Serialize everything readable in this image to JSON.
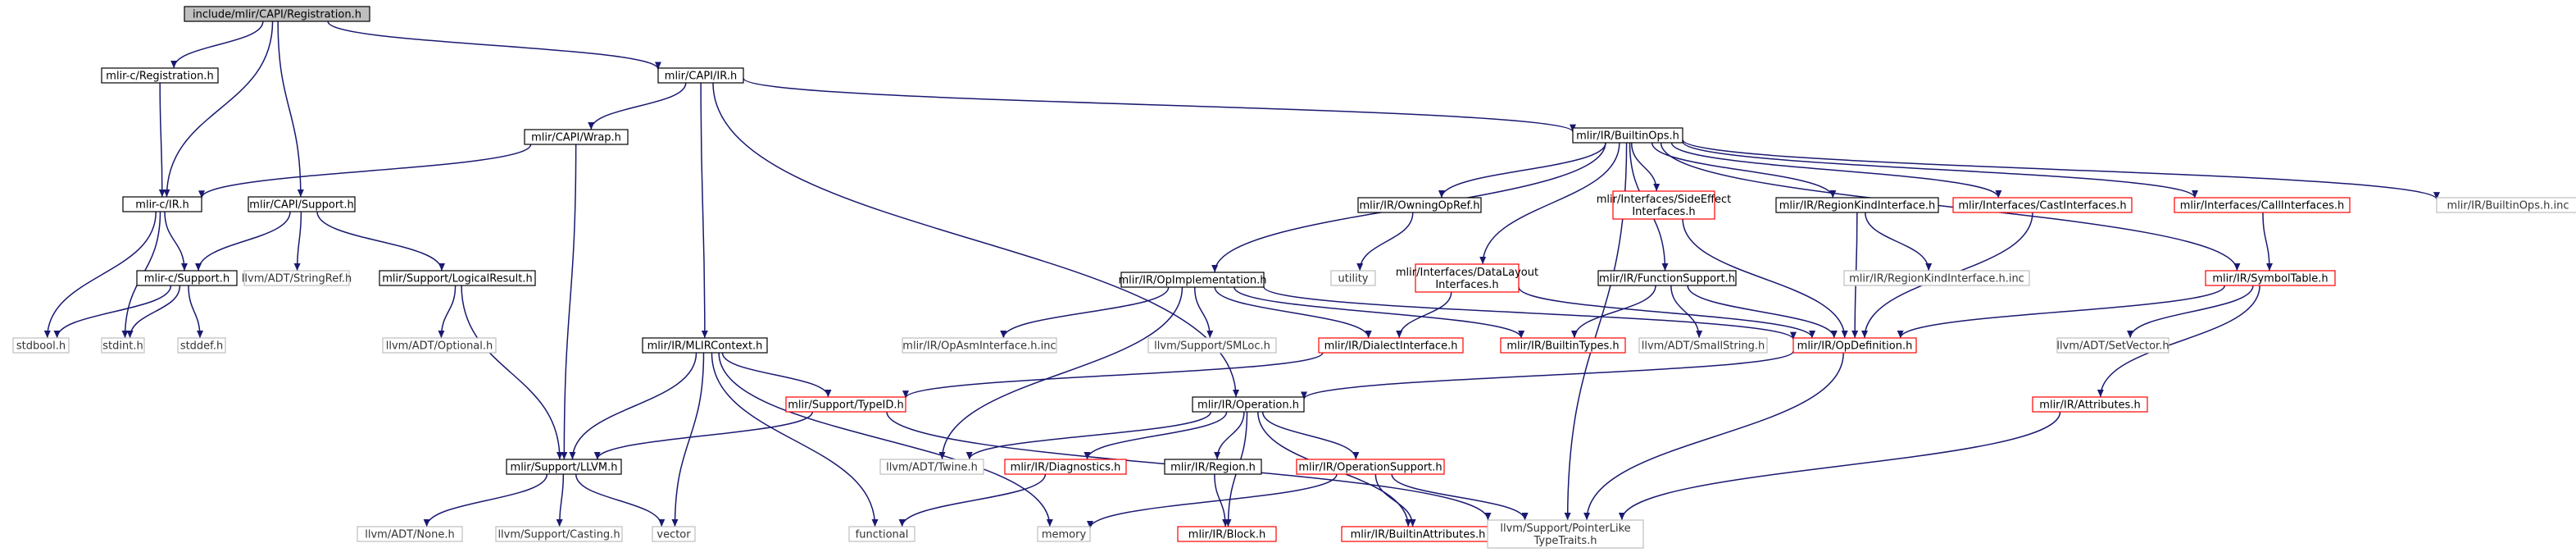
{
  "colors": {
    "edge": "#191970",
    "border_local": "#000000",
    "border_external": "#bfbfbf",
    "border_incomplete": "#ff0000",
    "fill_root": "#bfbfbf",
    "fill_default": "#ffffff"
  },
  "graph": {
    "nodes": [
      {
        "id": "root",
        "label": "include/mlir/CAPI/Registration.h",
        "kind": "root"
      },
      {
        "id": "mlircReg",
        "label": "mlir-c/Registration.h",
        "kind": "local"
      },
      {
        "id": "capiIR",
        "label": "mlir/CAPI/IR.h",
        "kind": "local"
      },
      {
        "id": "capiWrap",
        "label": "mlir/CAPI/Wrap.h",
        "kind": "local"
      },
      {
        "id": "mlircIR",
        "label": "mlir-c/IR.h",
        "kind": "local"
      },
      {
        "id": "capiSupport",
        "label": "mlir/CAPI/Support.h",
        "kind": "local"
      },
      {
        "id": "mlircSupport",
        "label": "mlir-c/Support.h",
        "kind": "local"
      },
      {
        "id": "stringref",
        "label": "llvm/ADT/StringRef.h",
        "kind": "external"
      },
      {
        "id": "logicalResult",
        "label": "mlir/Support/LogicalResult.h",
        "kind": "local"
      },
      {
        "id": "stdbool",
        "label": "stdbool.h",
        "kind": "external"
      },
      {
        "id": "stdint",
        "label": "stdint.h",
        "kind": "external"
      },
      {
        "id": "stddef",
        "label": "stddef.h",
        "kind": "external"
      },
      {
        "id": "optional",
        "label": "llvm/ADT/Optional.h",
        "kind": "external"
      },
      {
        "id": "mlirContext",
        "label": "mlir/IR/MLIRContext.h",
        "kind": "local"
      },
      {
        "id": "typeid",
        "label": "mlir/Support/TypeID.h",
        "kind": "incomplete"
      },
      {
        "id": "llvmh",
        "label": "mlir/Support/LLVM.h",
        "kind": "local"
      },
      {
        "id": "none",
        "label": "llvm/ADT/None.h",
        "kind": "external"
      },
      {
        "id": "casting",
        "label": "llvm/Support/Casting.h",
        "kind": "external"
      },
      {
        "id": "vector",
        "label": "vector",
        "kind": "external"
      },
      {
        "id": "functional",
        "label": "functional",
        "kind": "external"
      },
      {
        "id": "memory",
        "label": "memory",
        "kind": "external"
      },
      {
        "id": "builtinOps",
        "label": "mlir/IR/BuiltinOps.h",
        "kind": "local"
      },
      {
        "id": "owningOpRef",
        "label": "mlir/IR/OwningOpRef.h",
        "kind": "local"
      },
      {
        "id": "utility",
        "label": "utility",
        "kind": "external"
      },
      {
        "id": "sideEffect",
        "label": "mlir/Interfaces/SideEffect|Interfaces.h",
        "kind": "incomplete"
      },
      {
        "id": "regionKind",
        "label": "mlir/IR/RegionKindInterface.h",
        "kind": "local"
      },
      {
        "id": "castInterfaces",
        "label": "mlir/Interfaces/CastInterfaces.h",
        "kind": "incomplete"
      },
      {
        "id": "callInterfaces",
        "label": "mlir/Interfaces/CallInterfaces.h",
        "kind": "incomplete"
      },
      {
        "id": "builtinOpsInc",
        "label": "mlir/IR/BuiltinOps.h.inc",
        "kind": "external"
      },
      {
        "id": "opImpl",
        "label": "mlir/IR/OpImplementation.h",
        "kind": "local"
      },
      {
        "id": "dataLayout",
        "label": "mlir/Interfaces/DataLayout|Interfaces.h",
        "kind": "incomplete"
      },
      {
        "id": "functionSupport",
        "label": "mlir/IR/FunctionSupport.h",
        "kind": "local"
      },
      {
        "id": "regionKindInc",
        "label": "mlir/IR/RegionKindInterface.h.inc",
        "kind": "external"
      },
      {
        "id": "symbolTable",
        "label": "mlir/IR/SymbolTable.h",
        "kind": "incomplete"
      },
      {
        "id": "opAsmInc",
        "label": "mlir/IR/OpAsmInterface.h.inc",
        "kind": "external"
      },
      {
        "id": "smloc",
        "label": "llvm/Support/SMLoc.h",
        "kind": "external"
      },
      {
        "id": "dialectInterface",
        "label": "mlir/IR/DialectInterface.h",
        "kind": "incomplete"
      },
      {
        "id": "builtinTypes",
        "label": "mlir/IR/BuiltinTypes.h",
        "kind": "incomplete"
      },
      {
        "id": "smallString",
        "label": "llvm/ADT/SmallString.h",
        "kind": "external"
      },
      {
        "id": "opDefinition",
        "label": "mlir/IR/OpDefinition.h",
        "kind": "incomplete"
      },
      {
        "id": "setVector",
        "label": "llvm/ADT/SetVector.h",
        "kind": "external"
      },
      {
        "id": "operation",
        "label": "mlir/IR/Operation.h",
        "kind": "local"
      },
      {
        "id": "attributes",
        "label": "mlir/IR/Attributes.h",
        "kind": "incomplete"
      },
      {
        "id": "twine",
        "label": "llvm/ADT/Twine.h",
        "kind": "external"
      },
      {
        "id": "diagnostics",
        "label": "mlir/IR/Diagnostics.h",
        "kind": "incomplete"
      },
      {
        "id": "region",
        "label": "mlir/IR/Region.h",
        "kind": "local"
      },
      {
        "id": "operationSupport",
        "label": "mlir/IR/OperationSupport.h",
        "kind": "incomplete"
      },
      {
        "id": "block",
        "label": "mlir/IR/Block.h",
        "kind": "incomplete"
      },
      {
        "id": "builtinAttributes",
        "label": "mlir/IR/BuiltinAttributes.h",
        "kind": "incomplete"
      },
      {
        "id": "pointerLike",
        "label": "llvm/Support/PointerLike|TypeTraits.h",
        "kind": "external"
      }
    ],
    "edges": [
      [
        "root",
        "mlircReg"
      ],
      [
        "root",
        "mlircIR"
      ],
      [
        "root",
        "capiSupport"
      ],
      [
        "root",
        "capiIR"
      ],
      [
        "mlircReg",
        "mlircIR"
      ],
      [
        "capiIR",
        "capiWrap"
      ],
      [
        "capiIR",
        "mlirContext"
      ],
      [
        "capiIR",
        "operation"
      ],
      [
        "capiIR",
        "builtinOps"
      ],
      [
        "capiWrap",
        "mlircIR"
      ],
      [
        "capiWrap",
        "llvmh"
      ],
      [
        "mlircIR",
        "mlircSupport"
      ],
      [
        "mlircIR",
        "stdbool"
      ],
      [
        "mlircIR",
        "stdint"
      ],
      [
        "capiSupport",
        "mlircSupport"
      ],
      [
        "capiSupport",
        "stringref"
      ],
      [
        "capiSupport",
        "logicalResult"
      ],
      [
        "mlircSupport",
        "stdbool"
      ],
      [
        "mlircSupport",
        "stdint"
      ],
      [
        "mlircSupport",
        "stddef"
      ],
      [
        "logicalResult",
        "optional"
      ],
      [
        "logicalResult",
        "llvmh"
      ],
      [
        "mlirContext",
        "llvmh"
      ],
      [
        "mlirContext",
        "typeid"
      ],
      [
        "mlirContext",
        "vector"
      ],
      [
        "mlirContext",
        "functional"
      ],
      [
        "mlirContext",
        "memory"
      ],
      [
        "typeid",
        "llvmh"
      ],
      [
        "typeid",
        "pointerLike"
      ],
      [
        "llvmh",
        "none"
      ],
      [
        "llvmh",
        "casting"
      ],
      [
        "llvmh",
        "vector"
      ],
      [
        "builtinOps",
        "opImpl"
      ],
      [
        "builtinOps",
        "owningOpRef"
      ],
      [
        "builtinOps",
        "dataLayout"
      ],
      [
        "builtinOps",
        "sideEffect"
      ],
      [
        "builtinOps",
        "functionSupport"
      ],
      [
        "builtinOps",
        "regionKind"
      ],
      [
        "builtinOps",
        "castInterfaces"
      ],
      [
        "builtinOps",
        "callInterfaces"
      ],
      [
        "builtinOps",
        "symbolTable"
      ],
      [
        "builtinOps",
        "builtinOpsInc"
      ],
      [
        "builtinOps",
        "pointerLike"
      ],
      [
        "owningOpRef",
        "utility"
      ],
      [
        "sideEffect",
        "opDefinition"
      ],
      [
        "regionKind",
        "opDefinition"
      ],
      [
        "regionKind",
        "regionKindInc"
      ],
      [
        "castInterfaces",
        "opDefinition"
      ],
      [
        "callInterfaces",
        "symbolTable"
      ],
      [
        "opImpl",
        "opAsmInc"
      ],
      [
        "opImpl",
        "smloc"
      ],
      [
        "opImpl",
        "dialectInterface"
      ],
      [
        "opImpl",
        "builtinTypes"
      ],
      [
        "opImpl",
        "opDefinition"
      ],
      [
        "opImpl",
        "twine"
      ],
      [
        "dataLayout",
        "dialectInterface"
      ],
      [
        "dataLayout",
        "opDefinition"
      ],
      [
        "functionSupport",
        "builtinTypes"
      ],
      [
        "functionSupport",
        "smallString"
      ],
      [
        "functionSupport",
        "opDefinition"
      ],
      [
        "symbolTable",
        "opDefinition"
      ],
      [
        "symbolTable",
        "setVector"
      ],
      [
        "symbolTable",
        "attributes"
      ],
      [
        "dialectInterface",
        "typeid"
      ],
      [
        "opDefinition",
        "operation"
      ],
      [
        "opDefinition",
        "pointerLike"
      ],
      [
        "attributes",
        "pointerLike"
      ],
      [
        "operation",
        "twine"
      ],
      [
        "operation",
        "diagnostics"
      ],
      [
        "operation",
        "region"
      ],
      [
        "operation",
        "operationSupport"
      ],
      [
        "operation",
        "block"
      ],
      [
        "operation",
        "builtinAttributes"
      ],
      [
        "diagnostics",
        "functional"
      ],
      [
        "region",
        "block"
      ],
      [
        "operationSupport",
        "memory"
      ],
      [
        "operationSupport",
        "builtinAttributes"
      ],
      [
        "operationSupport",
        "pointerLike"
      ]
    ]
  }
}
